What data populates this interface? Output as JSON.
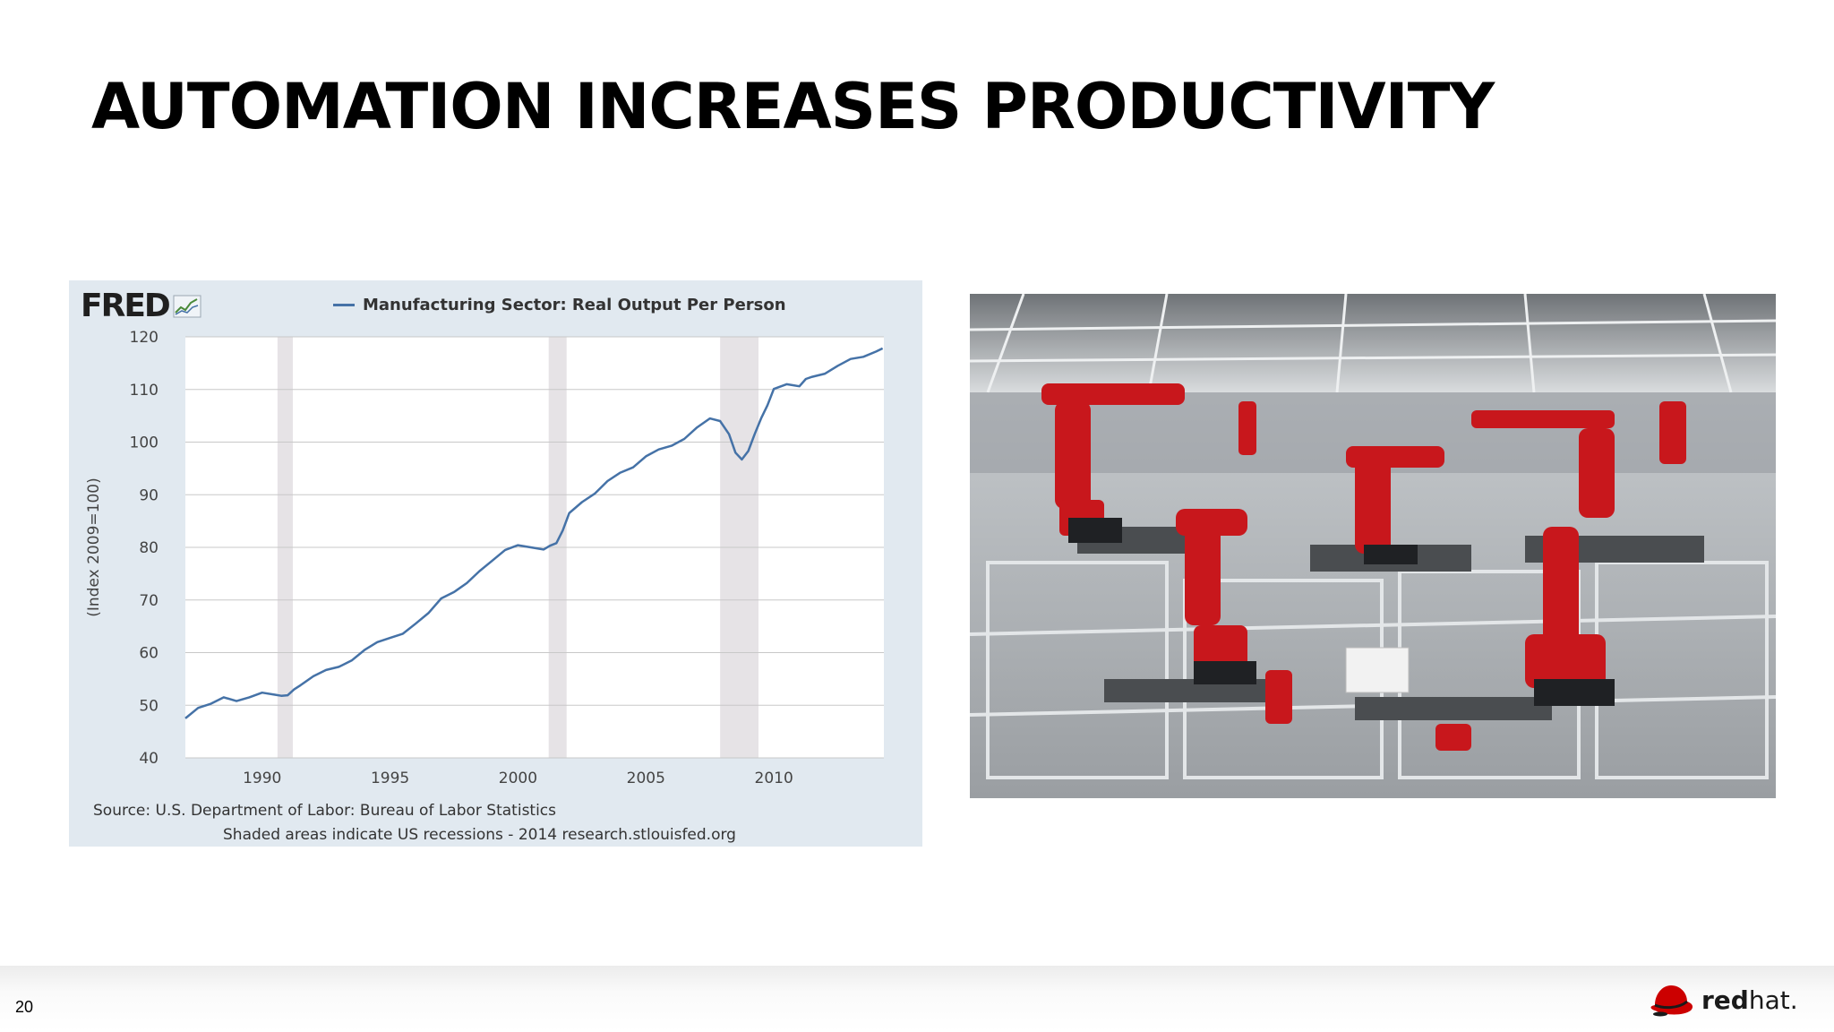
{
  "slide": {
    "title": "AUTOMATION INCREASES PRODUCTIVITY",
    "page_number": "20"
  },
  "fred": {
    "logo_text": "FRED",
    "source_line": "Source: U.S. Department of Labor: Bureau of Labor Statistics",
    "note_line": "Shaded areas indicate US recessions - 2014 research.stlouisfed.org"
  },
  "brand": {
    "logo_text_bold": "red",
    "logo_text_light": "hat.",
    "accent": "#cc0000"
  },
  "photo": {
    "icon": "factory-robots-photo"
  },
  "colors": {
    "series": "#4572a7",
    "recession": "#e6e3e6",
    "plot_background": "#ffffff",
    "panel_background": "#e1e9f0"
  },
  "chart_data": {
    "type": "line",
    "title": "",
    "xlabel": "",
    "ylabel": "(Index 2009=100)",
    "xlim": [
      1987.0,
      2014.3
    ],
    "ylim": [
      40,
      120
    ],
    "yticks": [
      40,
      50,
      60,
      70,
      80,
      90,
      100,
      110,
      120
    ],
    "xticks": [
      1990,
      1995,
      2000,
      2005,
      2010
    ],
    "grid": true,
    "legend_position": "top-center",
    "recessions": [
      [
        1990.6,
        1991.2
      ],
      [
        2001.2,
        2001.9
      ],
      [
        2007.9,
        2009.4
      ]
    ],
    "series": [
      {
        "name": "Manufacturing Sector: Real Output Per Person",
        "x": [
          1987.0,
          1987.5,
          1988.0,
          1988.5,
          1989.0,
          1989.5,
          1990.0,
          1990.5,
          1990.75,
          1991.0,
          1991.25,
          1991.5,
          1992.0,
          1992.5,
          1993.0,
          1993.5,
          1994.0,
          1994.5,
          1995.0,
          1995.5,
          1996.0,
          1996.5,
          1997.0,
          1997.5,
          1998.0,
          1998.5,
          1999.0,
          1999.5,
          2000.0,
          2000.5,
          2001.0,
          2001.25,
          2001.5,
          2001.75,
          2002.0,
          2002.5,
          2003.0,
          2003.5,
          2004.0,
          2004.5,
          2005.0,
          2005.5,
          2006.0,
          2006.5,
          2007.0,
          2007.5,
          2007.9,
          2008.25,
          2008.5,
          2008.75,
          2009.0,
          2009.25,
          2009.5,
          2009.75,
          2010.0,
          2010.5,
          2011.0,
          2011.25,
          2011.5,
          2012.0,
          2012.5,
          2013.0,
          2013.5,
          2014.0,
          2014.25
        ],
        "values": [
          47.5,
          49.5,
          50.3,
          51.5,
          50.8,
          51.5,
          52.4,
          52.0,
          51.8,
          51.9,
          53.0,
          53.8,
          55.5,
          56.7,
          57.3,
          58.5,
          60.5,
          62.0,
          62.8,
          63.6,
          65.5,
          67.5,
          70.3,
          71.5,
          73.2,
          75.5,
          77.5,
          79.5,
          80.4,
          80.0,
          79.6,
          80.3,
          80.8,
          83.2,
          86.5,
          88.6,
          90.2,
          92.6,
          94.2,
          95.2,
          97.3,
          98.6,
          99.3,
          100.6,
          102.8,
          104.5,
          104.0,
          101.5,
          98.0,
          96.7,
          98.3,
          101.5,
          104.5,
          107.0,
          110.1,
          111.0,
          110.6,
          112.0,
          112.4,
          113.0,
          114.5,
          115.8,
          116.2,
          117.2,
          117.8
        ]
      }
    ]
  }
}
